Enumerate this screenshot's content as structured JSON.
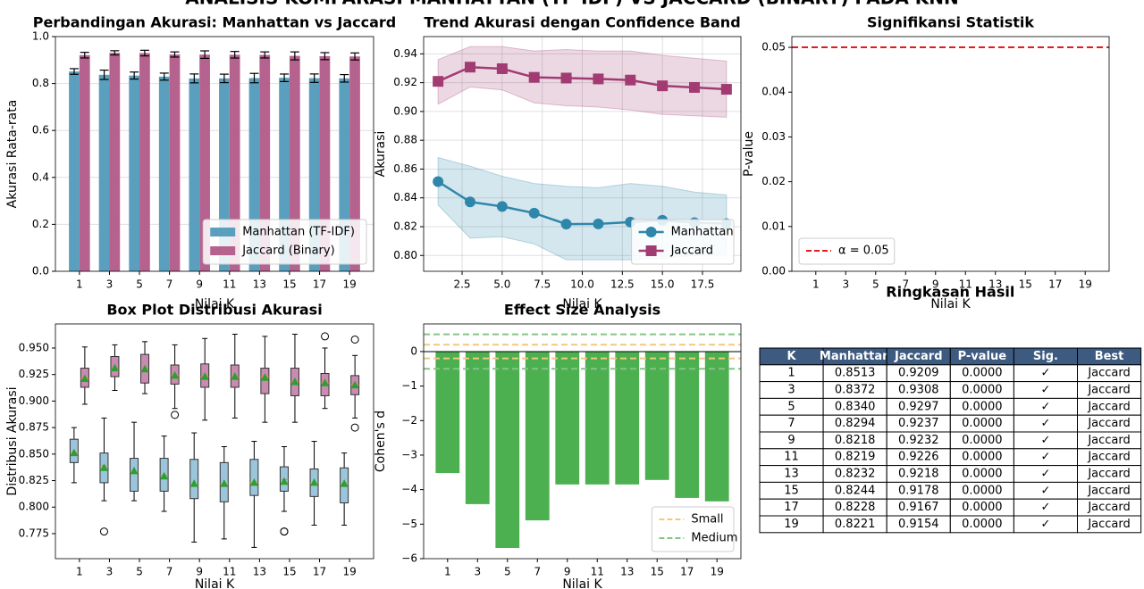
{
  "title": "ANALISIS KOMPARASI MANHATTAN (TF-IDF) VS JACCARD (BINARY) PADA KNN",
  "chart_data": [
    {
      "type": "bar",
      "title": "Perbandingan Akurasi: Manhattan vs Jaccard",
      "xlabel": "Nilai K",
      "ylabel": "Akurasi Rata-rata",
      "categories": [
        1,
        3,
        5,
        7,
        9,
        11,
        13,
        15,
        17,
        19
      ],
      "series": [
        {
          "name": "Manhattan (TF-IDF)",
          "color": "#5a9fbd",
          "values": [
            0.8513,
            0.8372,
            0.834,
            0.8294,
            0.8218,
            0.8219,
            0.8232,
            0.8244,
            0.8228,
            0.8221
          ],
          "errors": [
            0.012,
            0.02,
            0.015,
            0.015,
            0.019,
            0.018,
            0.02,
            0.016,
            0.018,
            0.016
          ]
        },
        {
          "name": "Jaccard (Binary)",
          "color": "#b5628f",
          "values": [
            0.9209,
            0.9308,
            0.9297,
            0.9237,
            0.9232,
            0.9226,
            0.9218,
            0.9178,
            0.9167,
            0.9154
          ],
          "errors": [
            0.012,
            0.009,
            0.012,
            0.011,
            0.016,
            0.014,
            0.013,
            0.017,
            0.015,
            0.015
          ]
        }
      ],
      "ylim": [
        0,
        1
      ],
      "yticks": [
        {
          "value": 0,
          "label": "0.0"
        },
        0.2,
        0.4,
        0.6,
        0.8,
        {
          "value": 1,
          "label": "1.0"
        }
      ],
      "grid": "y",
      "legend": "lower right"
    },
    {
      "type": "line",
      "title": "Trend Akurasi dengan Confidence Band",
      "xlabel": "Nilai K",
      "ylabel": "Akurasi",
      "x": [
        1,
        3,
        5,
        7,
        9,
        11,
        13,
        15,
        17,
        19
      ],
      "series": [
        {
          "name": "Manhattan",
          "color": "#2e86ab",
          "marker": "circle",
          "values": [
            0.8513,
            0.8372,
            0.834,
            0.8294,
            0.8218,
            0.8219,
            0.8232,
            0.8244,
            0.8228,
            0.8221
          ],
          "band_low": [
            0.835,
            0.812,
            0.813,
            0.808,
            0.797,
            0.797,
            0.797,
            0.798,
            0.8,
            0.801
          ],
          "band_high": [
            0.868,
            0.862,
            0.855,
            0.85,
            0.848,
            0.847,
            0.85,
            0.848,
            0.844,
            0.842
          ]
        },
        {
          "name": "Jaccard",
          "color": "#a23b72",
          "marker": "square",
          "values": [
            0.9209,
            0.9308,
            0.9297,
            0.9237,
            0.9232,
            0.9226,
            0.9218,
            0.9178,
            0.9167,
            0.9154
          ],
          "band_low": [
            0.905,
            0.917,
            0.915,
            0.906,
            0.904,
            0.903,
            0.901,
            0.898,
            0.897,
            0.896
          ],
          "band_high": [
            0.936,
            0.945,
            0.945,
            0.942,
            0.943,
            0.942,
            0.942,
            0.939,
            0.937,
            0.935
          ]
        }
      ],
      "xlim": [
        0.1,
        19.9
      ],
      "xticks": [
        2.5,
        {
          "value": 5,
          "label": "5.0"
        },
        7.5,
        {
          "value": 10,
          "label": "10.0"
        },
        12.5,
        {
          "value": 15,
          "label": "15.0"
        },
        17.5
      ],
      "ylim": [
        0.789,
        0.952
      ],
      "yticks": [
        {
          "value": 0.8,
          "label": "0.80"
        },
        0.82,
        0.84,
        0.86,
        0.88,
        {
          "value": 0.9,
          "label": "0.90"
        },
        0.92,
        0.94
      ],
      "grid": "both",
      "legend": "lower right"
    },
    {
      "type": "bar",
      "title": "Signifikansi Statistik",
      "xlabel": "Nilai K",
      "ylabel": "P-value",
      "categories": [
        1,
        3,
        5,
        7,
        9,
        11,
        13,
        15,
        17,
        19
      ],
      "values": [
        0,
        0,
        0,
        0,
        0,
        0,
        0,
        0,
        0,
        0
      ],
      "hlines": [
        {
          "values": [
            0.05
          ],
          "label": "α = 0.05",
          "color": "#e41a1c",
          "style": "dashed"
        }
      ],
      "ylim": [
        0,
        0.0524
      ],
      "yticks": [
        {
          "value": 0,
          "label": "0.00"
        },
        0.01,
        0.02,
        0.03,
        0.04,
        0.05
      ],
      "legend": "lower left"
    },
    {
      "type": "box",
      "title": "Box Plot Distribusi Akurasi",
      "xlabel": "Nilai K",
      "ylabel": "Distribusi Akurasi",
      "categories": [
        1,
        3,
        5,
        7,
        9,
        11,
        13,
        15,
        17,
        19
      ],
      "series": [
        {
          "color": "#9cc5dc",
          "mean_color": "#2ca02c",
          "boxes": [
            {
              "whislo": 0.823,
              "q1": 0.842,
              "med": 0.851,
              "q3": 0.864,
              "whishi": 0.875,
              "mean": 0.851,
              "fliers": []
            },
            {
              "whislo": 0.806,
              "q1": 0.823,
              "med": 0.839,
              "q3": 0.851,
              "whishi": 0.884,
              "mean": 0.837,
              "fliers": [
                0.777
              ]
            },
            {
              "whislo": 0.806,
              "q1": 0.815,
              "med": 0.833,
              "q3": 0.846,
              "whishi": 0.88,
              "mean": 0.834,
              "fliers": []
            },
            {
              "whislo": 0.796,
              "q1": 0.815,
              "med": 0.83,
              "q3": 0.846,
              "whishi": 0.867,
              "mean": 0.829,
              "fliers": []
            },
            {
              "whislo": 0.767,
              "q1": 0.808,
              "med": 0.82,
              "q3": 0.845,
              "whishi": 0.87,
              "mean": 0.822,
              "fliers": []
            },
            {
              "whislo": 0.77,
              "q1": 0.805,
              "med": 0.822,
              "q3": 0.842,
              "whishi": 0.857,
              "mean": 0.822,
              "fliers": []
            },
            {
              "whislo": 0.762,
              "q1": 0.811,
              "med": 0.823,
              "q3": 0.845,
              "whishi": 0.862,
              "mean": 0.823,
              "fliers": []
            },
            {
              "whislo": 0.796,
              "q1": 0.815,
              "med": 0.826,
              "q3": 0.838,
              "whishi": 0.857,
              "mean": 0.824,
              "fliers": [
                0.777,
                0.777
              ]
            },
            {
              "whislo": 0.783,
              "q1": 0.81,
              "med": 0.822,
              "q3": 0.836,
              "whishi": 0.862,
              "mean": 0.823,
              "fliers": []
            },
            {
              "whislo": 0.783,
              "q1": 0.804,
              "med": 0.822,
              "q3": 0.837,
              "whishi": 0.851,
              "mean": 0.822,
              "fliers": []
            }
          ]
        },
        {
          "color": "#c98bb0",
          "mean_color": "#2ca02c",
          "boxes": [
            {
              "whislo": 0.897,
              "q1": 0.913,
              "med": 0.921,
              "q3": 0.931,
              "whishi": 0.951,
              "mean": 0.921,
              "fliers": []
            },
            {
              "whislo": 0.91,
              "q1": 0.923,
              "med": 0.929,
              "q3": 0.942,
              "whishi": 0.953,
              "mean": 0.931,
              "fliers": []
            },
            {
              "whislo": 0.907,
              "q1": 0.917,
              "med": 0.928,
              "q3": 0.944,
              "whishi": 0.956,
              "mean": 0.93,
              "fliers": []
            },
            {
              "whislo": 0.893,
              "q1": 0.916,
              "med": 0.924,
              "q3": 0.934,
              "whishi": 0.953,
              "mean": 0.924,
              "fliers": [
                0.887
              ]
            },
            {
              "whislo": 0.882,
              "q1": 0.913,
              "med": 0.923,
              "q3": 0.935,
              "whishi": 0.959,
              "mean": 0.923,
              "fliers": []
            },
            {
              "whislo": 0.884,
              "q1": 0.913,
              "med": 0.922,
              "q3": 0.934,
              "whishi": 0.963,
              "mean": 0.923,
              "fliers": []
            },
            {
              "whislo": 0.88,
              "q1": 0.907,
              "med": 0.923,
              "q3": 0.931,
              "whishi": 0.961,
              "mean": 0.922,
              "fliers": []
            },
            {
              "whislo": 0.88,
              "q1": 0.905,
              "med": 0.918,
              "q3": 0.931,
              "whishi": 0.963,
              "mean": 0.918,
              "fliers": []
            },
            {
              "whislo": 0.893,
              "q1": 0.905,
              "med": 0.917,
              "q3": 0.926,
              "whishi": 0.95,
              "mean": 0.917,
              "fliers": [
                0.961
              ]
            },
            {
              "whislo": 0.884,
              "q1": 0.906,
              "med": 0.915,
              "q3": 0.924,
              "whishi": 0.943,
              "mean": 0.915,
              "fliers": [
                0.958,
                0.875
              ]
            }
          ]
        }
      ],
      "ylim": [
        0.7514,
        0.9727
      ],
      "yticks": [
        0.775,
        {
          "value": 0.8,
          "label": "0.800"
        },
        0.825,
        {
          "value": 0.85,
          "label": "0.850"
        },
        0.875,
        {
          "value": 0.9,
          "label": "0.900"
        },
        0.925,
        {
          "value": 0.95,
          "label": "0.950"
        }
      ]
    },
    {
      "type": "bar",
      "title": "Effect Size Analysis",
      "xlabel": "Nilai K",
      "ylabel": "Cohen's d",
      "categories": [
        1,
        3,
        5,
        7,
        9,
        11,
        13,
        15,
        17,
        19
      ],
      "values": [
        -3.52,
        -4.42,
        -5.69,
        -4.89,
        -3.85,
        -3.85,
        -3.85,
        -3.72,
        -4.24,
        -4.34
      ],
      "color": "#4caf50",
      "hlines": [
        {
          "values": [
            0
          ],
          "color": "#000000",
          "style": "solid"
        },
        {
          "values": [
            0.2,
            -0.2
          ],
          "label": "Small",
          "color": "#f5c77a",
          "style": "dashed"
        },
        {
          "values": [
            0.5,
            -0.5
          ],
          "label": "Medium",
          "color": "#86c486",
          "style": "dashed"
        }
      ],
      "ylim": [
        -6,
        0.8
      ],
      "yticks": [
        {
          "value": -6,
          "label": "−6"
        },
        {
          "value": -5,
          "label": "−5"
        },
        {
          "value": -4,
          "label": "−4"
        },
        {
          "value": -3,
          "label": "−3"
        },
        {
          "value": -2,
          "label": "−2"
        },
        {
          "value": -1,
          "label": "−1"
        },
        0
      ],
      "legend": "lower right"
    }
  ],
  "table": {
    "title": "Ringkasan Hasil",
    "columns": [
      "K",
      "Manhattan",
      "Jaccard",
      "P-value",
      "Sig.",
      "Best"
    ],
    "rows": [
      [
        "1",
        "0.8513",
        "0.9209",
        "0.0000",
        "✓",
        "Jaccard"
      ],
      [
        "3",
        "0.8372",
        "0.9308",
        "0.0000",
        "✓",
        "Jaccard"
      ],
      [
        "5",
        "0.8340",
        "0.9297",
        "0.0000",
        "✓",
        "Jaccard"
      ],
      [
        "7",
        "0.8294",
        "0.9237",
        "0.0000",
        "✓",
        "Jaccard"
      ],
      [
        "9",
        "0.8218",
        "0.9232",
        "0.0000",
        "✓",
        "Jaccard"
      ],
      [
        "11",
        "0.8219",
        "0.9226",
        "0.0000",
        "✓",
        "Jaccard"
      ],
      [
        "13",
        "0.8232",
        "0.9218",
        "0.0000",
        "✓",
        "Jaccard"
      ],
      [
        "15",
        "0.8244",
        "0.9178",
        "0.0000",
        "✓",
        "Jaccard"
      ],
      [
        "17",
        "0.8228",
        "0.9167",
        "0.0000",
        "✓",
        "Jaccard"
      ],
      [
        "19",
        "0.8221",
        "0.9154",
        "0.0000",
        "✓",
        "Jaccard"
      ]
    ]
  }
}
